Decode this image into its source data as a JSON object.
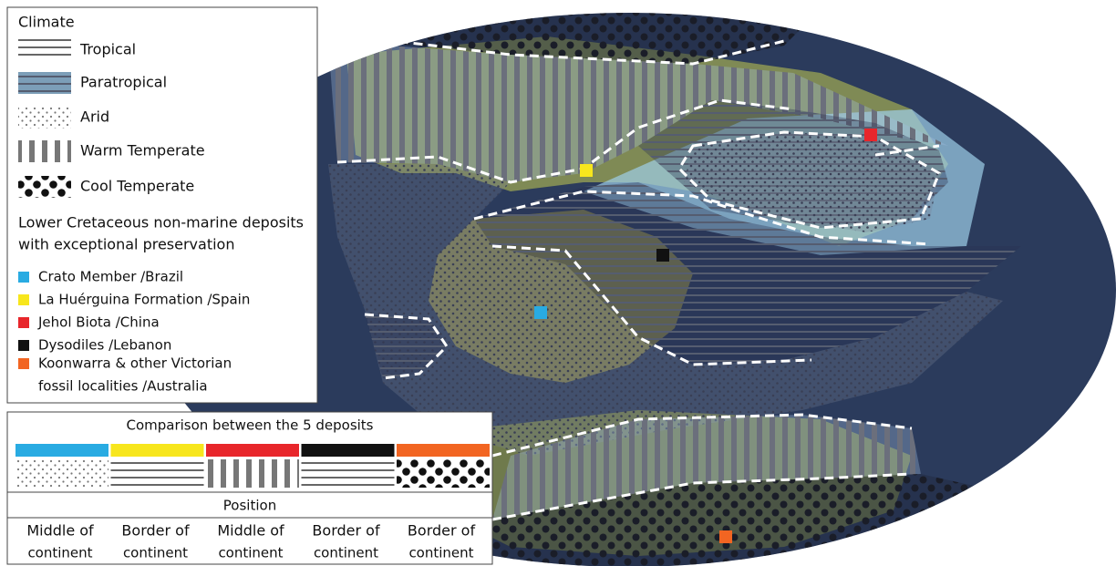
{
  "climate_legend": {
    "title": "Climate",
    "items": [
      "Tropical",
      "Paratropical",
      "Arid",
      "Warm Temperate",
      "Cool Temperate"
    ]
  },
  "deposits_legend": {
    "title_lines": [
      "Lower Cretaceous non-marine deposits",
      "with exceptional preservation"
    ],
    "items": [
      {
        "lines": [
          "Crato Member /Brazil"
        ],
        "color": "#29abe2"
      },
      {
        "lines": [
          "La Huérguina Formation /Spain"
        ],
        "color": "#f7e61d"
      },
      {
        "lines": [
          "Jehol Biota /China"
        ],
        "color": "#e8262b"
      },
      {
        "lines": [
          "Dysodiles /Lebanon"
        ],
        "color": "#111111"
      },
      {
        "lines": [
          "Koonwarra & other Victorian",
          "fossil localities /Australia"
        ],
        "color": "#f26522"
      }
    ]
  },
  "comparison": {
    "title": "Comparison between the 5 deposits",
    "position_title": "Position",
    "positions": [
      [
        "Middle of",
        "continent"
      ],
      [
        "Border of",
        "continent"
      ],
      [
        "Middle of",
        "continent"
      ],
      [
        "Border of",
        "continent"
      ],
      [
        "Border of",
        "continent"
      ]
    ]
  }
}
